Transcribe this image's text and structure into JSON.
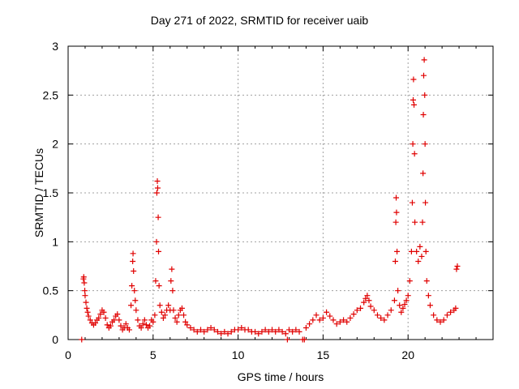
{
  "chart_data": {
    "type": "scatter",
    "title": "Day 271 of 2022, SRMTID for receiver uaib",
    "xlabel": "GPS time / hours",
    "ylabel": "SRMTID / TECUs",
    "xlim": [
      0,
      25
    ],
    "ylim": [
      0,
      3
    ],
    "xticks": [
      0,
      5,
      10,
      15,
      20
    ],
    "yticks": [
      0,
      0.5,
      1,
      1.5,
      2,
      2.5,
      3
    ],
    "ytick_labels": [
      "0",
      "0.5",
      "1",
      "1.5",
      "2",
      "2.5",
      "3"
    ],
    "grid": true,
    "marker": "+",
    "color": "#e00000",
    "series": [
      {
        "name": "SRMTID",
        "points": [
          [
            0.8,
            0.0
          ],
          [
            0.9,
            0.62
          ],
          [
            0.92,
            0.64
          ],
          [
            0.95,
            0.58
          ],
          [
            0.98,
            0.5
          ],
          [
            1.0,
            0.45
          ],
          [
            1.05,
            0.38
          ],
          [
            1.1,
            0.32
          ],
          [
            1.15,
            0.28
          ],
          [
            1.2,
            0.24
          ],
          [
            1.3,
            0.2
          ],
          [
            1.4,
            0.17
          ],
          [
            1.5,
            0.15
          ],
          [
            1.6,
            0.17
          ],
          [
            1.7,
            0.2
          ],
          [
            1.8,
            0.22
          ],
          [
            1.9,
            0.26
          ],
          [
            2.0,
            0.3
          ],
          [
            2.1,
            0.28
          ],
          [
            2.2,
            0.22
          ],
          [
            2.3,
            0.15
          ],
          [
            2.4,
            0.12
          ],
          [
            2.5,
            0.14
          ],
          [
            2.6,
            0.18
          ],
          [
            2.7,
            0.2
          ],
          [
            2.8,
            0.24
          ],
          [
            2.9,
            0.26
          ],
          [
            3.0,
            0.2
          ],
          [
            3.1,
            0.14
          ],
          [
            3.2,
            0.1
          ],
          [
            3.3,
            0.12
          ],
          [
            3.4,
            0.16
          ],
          [
            3.5,
            0.12
          ],
          [
            3.6,
            0.1
          ],
          [
            3.7,
            0.35
          ],
          [
            3.75,
            0.55
          ],
          [
            3.8,
            0.8
          ],
          [
            3.82,
            0.88
          ],
          [
            3.85,
            0.7
          ],
          [
            3.9,
            0.5
          ],
          [
            3.95,
            0.4
          ],
          [
            4.0,
            0.3
          ],
          [
            4.1,
            0.2
          ],
          [
            4.2,
            0.14
          ],
          [
            4.3,
            0.12
          ],
          [
            4.4,
            0.16
          ],
          [
            4.5,
            0.2
          ],
          [
            4.6,
            0.15
          ],
          [
            4.7,
            0.12
          ],
          [
            4.8,
            0.14
          ],
          [
            4.9,
            0.2
          ],
          [
            5.0,
            0.18
          ],
          [
            5.1,
            0.25
          ],
          [
            5.15,
            0.6
          ],
          [
            5.2,
            1.0
          ],
          [
            5.22,
            1.5
          ],
          [
            5.25,
            1.62
          ],
          [
            5.27,
            1.55
          ],
          [
            5.3,
            1.25
          ],
          [
            5.32,
            0.9
          ],
          [
            5.35,
            0.55
          ],
          [
            5.4,
            0.35
          ],
          [
            5.5,
            0.28
          ],
          [
            5.6,
            0.22
          ],
          [
            5.7,
            0.25
          ],
          [
            5.8,
            0.3
          ],
          [
            5.9,
            0.35
          ],
          [
            6.0,
            0.3
          ],
          [
            6.05,
            0.6
          ],
          [
            6.1,
            0.72
          ],
          [
            6.15,
            0.5
          ],
          [
            6.2,
            0.3
          ],
          [
            6.3,
            0.22
          ],
          [
            6.4,
            0.18
          ],
          [
            6.5,
            0.25
          ],
          [
            6.6,
            0.3
          ],
          [
            6.7,
            0.32
          ],
          [
            6.8,
            0.25
          ],
          [
            6.9,
            0.18
          ],
          [
            7.0,
            0.15
          ],
          [
            7.2,
            0.12
          ],
          [
            7.4,
            0.1
          ],
          [
            7.6,
            0.08
          ],
          [
            7.8,
            0.1
          ],
          [
            8.0,
            0.08
          ],
          [
            8.2,
            0.1
          ],
          [
            8.4,
            0.12
          ],
          [
            8.6,
            0.1
          ],
          [
            8.8,
            0.08
          ],
          [
            9.0,
            0.06
          ],
          [
            9.2,
            0.08
          ],
          [
            9.4,
            0.06
          ],
          [
            9.6,
            0.08
          ],
          [
            9.8,
            0.1
          ],
          [
            10.0,
            0.1
          ],
          [
            10.2,
            0.12
          ],
          [
            10.4,
            0.1
          ],
          [
            10.6,
            0.1
          ],
          [
            10.8,
            0.08
          ],
          [
            11.0,
            0.08
          ],
          [
            11.2,
            0.06
          ],
          [
            11.4,
            0.08
          ],
          [
            11.6,
            0.1
          ],
          [
            11.8,
            0.08
          ],
          [
            12.0,
            0.1
          ],
          [
            12.2,
            0.08
          ],
          [
            12.4,
            0.1
          ],
          [
            12.6,
            0.08
          ],
          [
            12.8,
            0.06
          ],
          [
            12.9,
            0.0
          ],
          [
            13.0,
            0.1
          ],
          [
            13.2,
            0.08
          ],
          [
            13.4,
            0.1
          ],
          [
            13.6,
            0.08
          ],
          [
            13.8,
            0.0
          ],
          [
            13.9,
            0.0
          ],
          [
            14.0,
            0.12
          ],
          [
            14.2,
            0.16
          ],
          [
            14.4,
            0.2
          ],
          [
            14.6,
            0.25
          ],
          [
            14.8,
            0.2
          ],
          [
            15.0,
            0.22
          ],
          [
            15.2,
            0.28
          ],
          [
            15.4,
            0.24
          ],
          [
            15.6,
            0.2
          ],
          [
            15.8,
            0.16
          ],
          [
            16.0,
            0.18
          ],
          [
            16.2,
            0.2
          ],
          [
            16.4,
            0.18
          ],
          [
            16.6,
            0.22
          ],
          [
            16.8,
            0.26
          ],
          [
            17.0,
            0.3
          ],
          [
            17.2,
            0.32
          ],
          [
            17.4,
            0.38
          ],
          [
            17.5,
            0.42
          ],
          [
            17.6,
            0.45
          ],
          [
            17.7,
            0.4
          ],
          [
            17.8,
            0.34
          ],
          [
            18.0,
            0.3
          ],
          [
            18.2,
            0.25
          ],
          [
            18.4,
            0.22
          ],
          [
            18.6,
            0.2
          ],
          [
            18.8,
            0.25
          ],
          [
            19.0,
            0.3
          ],
          [
            19.2,
            0.4
          ],
          [
            19.25,
            0.8
          ],
          [
            19.28,
            1.2
          ],
          [
            19.3,
            1.45
          ],
          [
            19.32,
            1.3
          ],
          [
            19.35,
            0.9
          ],
          [
            19.4,
            0.5
          ],
          [
            19.5,
            0.35
          ],
          [
            19.6,
            0.28
          ],
          [
            19.7,
            0.32
          ],
          [
            19.8,
            0.36
          ],
          [
            19.9,
            0.4
          ],
          [
            20.0,
            0.45
          ],
          [
            20.1,
            0.6
          ],
          [
            20.2,
            0.9
          ],
          [
            20.25,
            1.4
          ],
          [
            20.28,
            2.0
          ],
          [
            20.3,
            2.45
          ],
          [
            20.32,
            2.66
          ],
          [
            20.35,
            2.4
          ],
          [
            20.38,
            1.9
          ],
          [
            20.4,
            1.2
          ],
          [
            20.5,
            0.9
          ],
          [
            20.6,
            0.8
          ],
          [
            20.7,
            0.95
          ],
          [
            20.8,
            0.85
          ],
          [
            20.85,
            1.2
          ],
          [
            20.88,
            1.7
          ],
          [
            20.9,
            2.3
          ],
          [
            20.92,
            2.7
          ],
          [
            20.95,
            2.86
          ],
          [
            20.98,
            2.5
          ],
          [
            21.0,
            2.0
          ],
          [
            21.02,
            1.4
          ],
          [
            21.05,
            0.9
          ],
          [
            21.1,
            0.6
          ],
          [
            21.2,
            0.45
          ],
          [
            21.3,
            0.35
          ],
          [
            21.5,
            0.25
          ],
          [
            21.7,
            0.2
          ],
          [
            21.9,
            0.18
          ],
          [
            22.1,
            0.2
          ],
          [
            22.3,
            0.25
          ],
          [
            22.5,
            0.28
          ],
          [
            22.7,
            0.3
          ],
          [
            22.8,
            0.32
          ],
          [
            22.85,
            0.72
          ],
          [
            22.9,
            0.75
          ]
        ]
      }
    ]
  }
}
